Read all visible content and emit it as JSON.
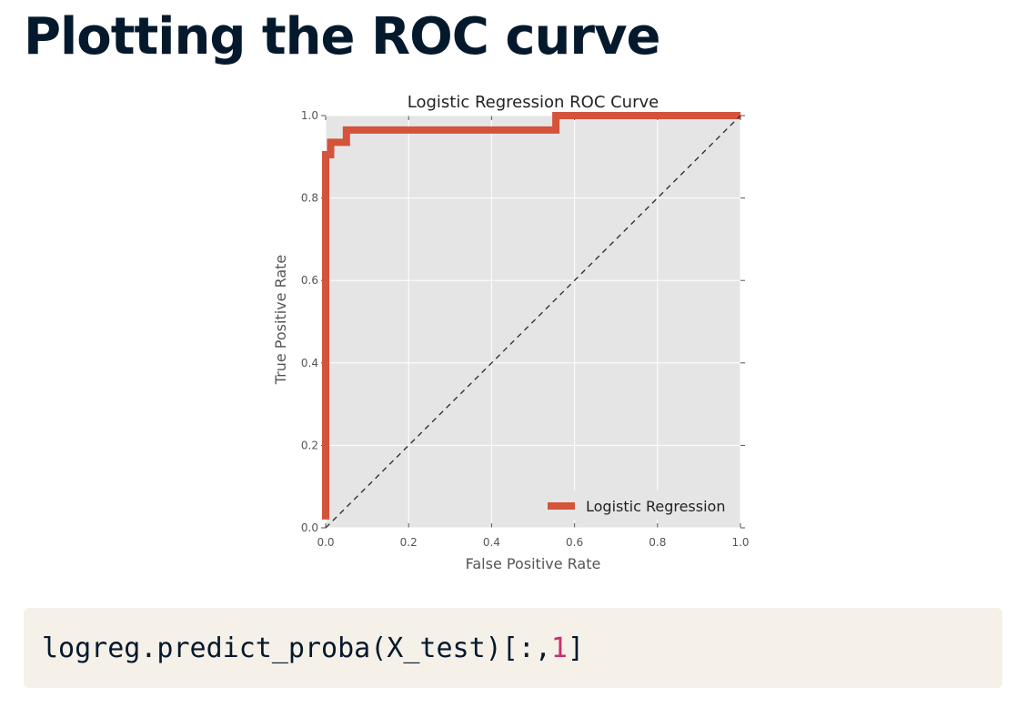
{
  "slide": {
    "title": "Plotting the ROC curve"
  },
  "code": {
    "prefix": "logreg.predict_proba(X_test)[:,",
    "number": "1",
    "suffix": "]"
  },
  "chart_data": {
    "type": "line",
    "title": "Logistic Regression ROC Curve",
    "xlabel": "False Positive Rate",
    "ylabel": "True Positive Rate",
    "xlim": [
      0,
      1
    ],
    "ylim": [
      0,
      1
    ],
    "xticks": [
      "0.0",
      "0.2",
      "0.4",
      "0.6",
      "0.8",
      "1.0"
    ],
    "yticks": [
      "0.0",
      "0.2",
      "0.4",
      "0.6",
      "0.8",
      "1.0"
    ],
    "grid": true,
    "legend_position": "lower-right",
    "series": [
      {
        "name": "Logistic Regression",
        "color": "#d4533b",
        "style": "solid",
        "x": [
          0.0,
          0.0,
          0.012,
          0.012,
          0.05,
          0.05,
          0.555,
          0.555,
          1.0
        ],
        "y": [
          0.02,
          0.905,
          0.905,
          0.935,
          0.935,
          0.965,
          0.965,
          1.0,
          1.0
        ]
      },
      {
        "name": "",
        "color": "#333333",
        "style": "dashed",
        "x": [
          0,
          1
        ],
        "y": [
          0,
          1
        ]
      }
    ]
  }
}
